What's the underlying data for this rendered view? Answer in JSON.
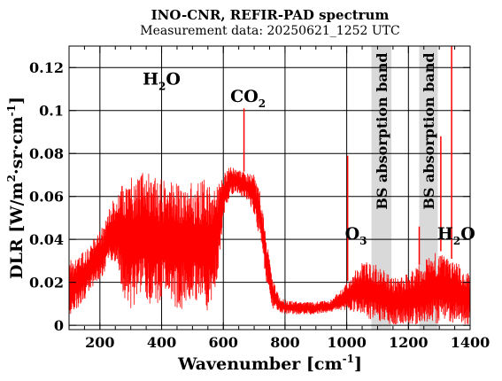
{
  "chart_data": {
    "type": "line",
    "title": "INO-CNR, REFIR-PAD spectrum",
    "subtitle": "Measurement data: 20250621_1252 UTC",
    "xlabel": {
      "main": "Wavenumber [cm",
      "sup": "-1",
      "close": "]"
    },
    "ylabel": {
      "p1": "DLR [W/m",
      "sup1": "2",
      "p2": "·sr·cm",
      "sup2": "-1",
      "close": "]"
    },
    "xlim": [
      100,
      1400
    ],
    "ylim": [
      -0.002,
      0.13
    ],
    "x_ticks": [
      200,
      400,
      600,
      800,
      1000,
      1200,
      1400
    ],
    "x_tick_labels": [
      "200",
      "400",
      "600",
      "800",
      "1000",
      "1200",
      "1400"
    ],
    "x_minor_ticks": [
      100,
      150,
      250,
      300,
      350,
      450,
      500,
      550,
      650,
      700,
      750,
      850,
      900,
      950,
      1050,
      1100,
      1150,
      1250,
      1300,
      1350
    ],
    "y_ticks": [
      0,
      0.02,
      0.04,
      0.06,
      0.08,
      0.1,
      0.12
    ],
    "y_tick_labels": [
      "0",
      "0.02",
      "0.04",
      "0.06",
      "0.08",
      "0.1",
      "0.12"
    ],
    "grid": true,
    "series_color": "#ff0000",
    "band_color": "#d9d9d9",
    "series": [
      {
        "envelope": {
          "x": [
            100,
            120,
            140,
            160,
            180,
            200,
            220,
            240,
            260,
            280,
            300,
            320,
            340,
            360,
            380,
            400,
            420,
            440,
            460,
            480,
            500,
            520,
            540,
            560,
            580,
            600,
            620,
            640,
            660,
            680,
            700,
            720,
            740,
            760,
            780,
            800,
            850,
            900,
            950,
            1000,
            1050,
            1100,
            1150,
            1200,
            1250,
            1300,
            1350,
            1400
          ],
          "upper": [
            0.03,
            0.032,
            0.034,
            0.036,
            0.04,
            0.044,
            0.05,
            0.058,
            0.063,
            0.067,
            0.07,
            0.072,
            0.072,
            0.071,
            0.07,
            0.068,
            0.067,
            0.067,
            0.069,
            0.068,
            0.066,
            0.067,
            0.068,
            0.067,
            0.066,
            0.07,
            0.074,
            0.073,
            0.072,
            0.071,
            0.07,
            0.062,
            0.04,
            0.022,
            0.014,
            0.012,
            0.011,
            0.011,
            0.012,
            0.02,
            0.03,
            0.028,
            0.022,
            0.024,
            0.03,
            0.035,
            0.03,
            0.025
          ],
          "lower": [
            0.005,
            0.006,
            0.01,
            0.014,
            0.018,
            0.02,
            0.025,
            0.03,
            0.025,
            0.01,
            0.008,
            0.009,
            0.01,
            0.009,
            0.008,
            0.01,
            0.012,
            0.008,
            0.006,
            0.01,
            0.012,
            0.008,
            0.007,
            0.006,
            0.02,
            0.05,
            0.06,
            0.062,
            0.06,
            0.058,
            0.05,
            0.04,
            0.02,
            0.008,
            0.006,
            0.005,
            0.005,
            0.005,
            0.006,
            0.007,
            0.004,
            0.001,
            0.0,
            0.0,
            0.0,
            0.001,
            0.001,
            0.0
          ]
        },
        "spikes": [
          {
            "x": 667,
            "y": 0.101
          },
          {
            "x": 1003,
            "y": 0.079
          },
          {
            "x": 1235,
            "y": 0.046
          },
          {
            "x": 1340,
            "y": 0.13
          },
          {
            "x": 1305,
            "y": 0.088
          }
        ]
      }
    ],
    "shaded_bands": [
      {
        "x0": 1080,
        "x1": 1145,
        "label": "BS absorption band"
      },
      {
        "x0": 1235,
        "x1": 1295,
        "label": "BS absorption band"
      }
    ],
    "annotations": [
      {
        "text": "H",
        "sub": "2",
        "tail": "O",
        "x": 400,
        "y": 0.112
      },
      {
        "text": "CO",
        "sub": "2",
        "tail": "",
        "x": 680,
        "y": 0.104
      },
      {
        "text": "O",
        "sub": "3",
        "tail": "",
        "x": 1030,
        "y": 0.04
      },
      {
        "text": "H",
        "sub": "2",
        "tail": "O",
        "x": 1355,
        "y": 0.04
      }
    ]
  }
}
